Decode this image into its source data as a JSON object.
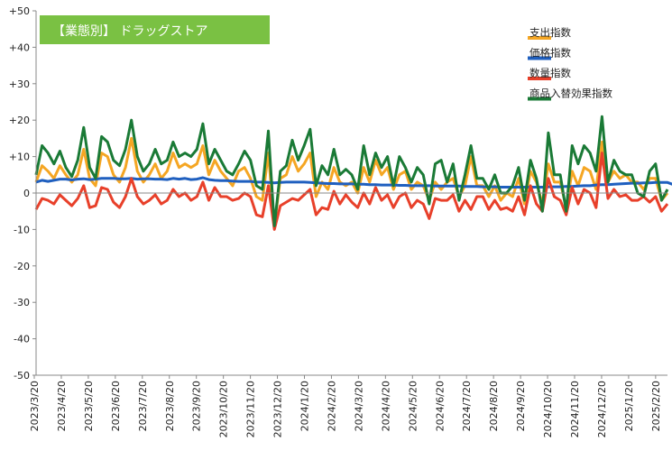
{
  "chart_data": {
    "type": "line",
    "title": "【業態別】 ドラッグストア",
    "title_bg_color": "#7ac143",
    "ylim": [
      -50,
      50
    ],
    "y_ticks": [
      {
        "value": 50,
        "label": "+50"
      },
      {
        "value": 40,
        "label": "+40"
      },
      {
        "value": 30,
        "label": "+30"
      },
      {
        "value": 20,
        "label": "+20"
      },
      {
        "value": 10,
        "label": "+10"
      },
      {
        "value": 0,
        "label": "0"
      },
      {
        "value": -10,
        "label": "-10"
      },
      {
        "value": -20,
        "label": "-20"
      },
      {
        "value": -30,
        "label": "-30"
      },
      {
        "value": -40,
        "label": "-40"
      },
      {
        "value": -50,
        "label": "-50"
      }
    ],
    "x_tick_labels": [
      "2023/3/20",
      "2023/4/20",
      "2023/5/20",
      "2023/6/20",
      "2023/7/20",
      "2023/8/20",
      "2023/9/20",
      "2023/10/20",
      "2023/11/20",
      "2023/12/20",
      "2024/1/20",
      "2024/2/20",
      "2024/3/20",
      "2024/4/20",
      "2024/5/20",
      "2024/6/20",
      "2024/7/20",
      "2024/8/20",
      "2024/9/20",
      "2024/10/20",
      "2024/11/20",
      "2024/12/20",
      "2025/1/20",
      "2025/2/20"
    ],
    "legend_position": "top-right",
    "grid": false,
    "series": [
      {
        "name": "支出指数",
        "color": "#f5a623",
        "values": [
          3,
          7.5,
          6,
          4,
          7.5,
          5,
          3,
          5,
          12,
          4,
          2,
          11,
          10,
          5,
          3,
          7,
          15,
          6,
          3,
          5,
          8,
          4,
          6,
          11,
          7,
          8,
          7,
          8,
          13,
          5,
          9,
          6,
          4,
          2,
          6,
          7,
          4,
          -1,
          -2,
          11,
          -9,
          4,
          5,
          10,
          6,
          8,
          11,
          -1,
          3,
          1,
          7,
          3,
          2,
          3,
          0,
          7,
          3,
          9,
          5,
          7,
          1,
          5,
          6,
          1,
          3,
          2,
          -2,
          3,
          1,
          3,
          4,
          -1,
          2,
          10,
          2,
          2,
          -1,
          2,
          -2,
          0,
          -1,
          4,
          -3,
          6,
          3,
          -3,
          8,
          3,
          3,
          -4,
          6,
          2,
          7,
          6,
          1,
          14,
          3,
          6,
          4,
          5,
          3,
          3,
          1,
          4,
          4,
          -2,
          0
        ]
      },
      {
        "name": "価格指数",
        "color": "#1f5fbf",
        "values": [
          3,
          3.5,
          3.2,
          3.5,
          3.8,
          3.8,
          3.6,
          3.8,
          3.9,
          3.7,
          3.8,
          4,
          4,
          4,
          3.9,
          3.9,
          4,
          3.8,
          3.9,
          3.9,
          3.8,
          3.8,
          3.7,
          4,
          3.8,
          4,
          3.7,
          3.8,
          4.2,
          3.7,
          3.5,
          3.4,
          3.4,
          3.3,
          3.2,
          3.2,
          3.2,
          3,
          3,
          2.9,
          2.8,
          2.9,
          3,
          3,
          3,
          3,
          2.9,
          2.8,
          2.7,
          2.6,
          2.6,
          2.5,
          2.5,
          2.5,
          2.4,
          2.4,
          2.3,
          2.3,
          2.2,
          2.2,
          2.2,
          2.1,
          2.1,
          2,
          2,
          2,
          2,
          1.9,
          1.9,
          1.9,
          1.9,
          1.9,
          1.8,
          1.8,
          1.8,
          1.7,
          1.7,
          1.7,
          1.6,
          1.6,
          1.6,
          1.6,
          1.6,
          1.6,
          1.6,
          1.6,
          1.7,
          1.7,
          1.7,
          1.8,
          1.8,
          1.9,
          2,
          2,
          2.2,
          2.3,
          2.3,
          2.4,
          2.5,
          2.6,
          2.7,
          2.7,
          2.8,
          2.8,
          2.9,
          2.9,
          2.9,
          2.3,
          2
        ]
      },
      {
        "name": "数量指数",
        "color": "#e8402a",
        "values": [
          -4.5,
          -1.5,
          -2,
          -3,
          -0.5,
          -2,
          -3.5,
          -1.5,
          2,
          -4,
          -3.5,
          1.5,
          1,
          -2.5,
          -4,
          -1,
          4,
          -1,
          -3,
          -2,
          -0.5,
          -3,
          -2,
          1,
          -1,
          0,
          -2,
          -1,
          3,
          -2,
          1.5,
          -1,
          -1,
          -2,
          -1.5,
          0,
          -1,
          -6,
          -6.5,
          2,
          -10,
          -3.5,
          -2.5,
          -1.5,
          -2,
          -0.5,
          1,
          -6,
          -4,
          -4.5,
          0.5,
          -3,
          -0.5,
          -2.5,
          -4,
          0,
          -3,
          1.5,
          -2,
          -0.5,
          -4,
          -1,
          0,
          -4,
          -2,
          -3,
          -7,
          -1.5,
          -2,
          -2,
          -0.5,
          -5,
          -2,
          -4.5,
          -1,
          -1,
          -4.5,
          -2,
          -4.5,
          -4,
          -5,
          -1,
          -6,
          2,
          -3,
          -5,
          4,
          -1,
          -2,
          -6,
          1.5,
          -3,
          1,
          0,
          -4,
          11,
          -1.5,
          1,
          -1,
          -0.5,
          -2,
          -2,
          -1,
          -2.5,
          -1,
          -5,
          -3
        ]
      },
      {
        "name": "商品入替効果指数",
        "color": "#1a7a36",
        "values": [
          5,
          13,
          11,
          8,
          11.5,
          7,
          4.5,
          9,
          18,
          7,
          4,
          15.5,
          14,
          9,
          7.5,
          12,
          20,
          10,
          6,
          8,
          12,
          8,
          9,
          14,
          10,
          11,
          10,
          12,
          19,
          8,
          12,
          9,
          6,
          5,
          8,
          11.5,
          9,
          2,
          1,
          17,
          -9,
          6,
          7.5,
          14.5,
          9,
          13,
          17.5,
          2,
          7.5,
          5,
          12,
          5,
          6.5,
          5,
          1,
          13,
          5,
          11,
          7,
          10,
          2,
          10,
          7,
          3,
          7,
          5,
          -3,
          8,
          9,
          3,
          8,
          -2,
          5,
          13,
          4,
          4,
          1,
          5,
          0,
          0,
          2,
          7,
          -2,
          9,
          4,
          -5,
          16.5,
          5,
          5,
          -5,
          13,
          8,
          13,
          11,
          6,
          21,
          3,
          9,
          6,
          5,
          5,
          0,
          -1,
          6,
          8,
          -2,
          1
        ]
      }
    ]
  }
}
